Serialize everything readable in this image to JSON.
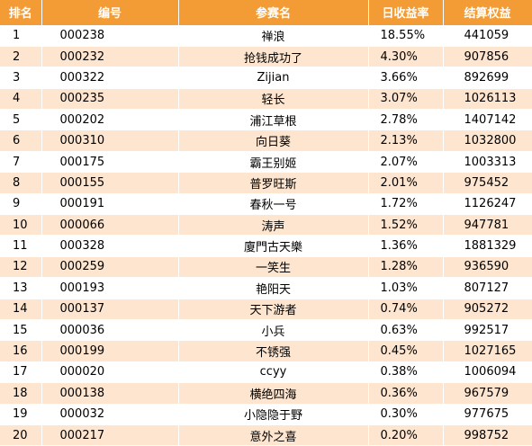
{
  "table": {
    "headers": [
      "排名",
      "编号",
      "参赛名",
      "日收益率",
      "结算权益"
    ],
    "rows": [
      [
        "1",
        "000238",
        "禅浪",
        "18.55%",
        "441059"
      ],
      [
        "2",
        "000232",
        "抢钱成功了",
        "4.30%",
        "907856"
      ],
      [
        "3",
        "000322",
        "Zijian",
        "3.66%",
        "892699"
      ],
      [
        "4",
        "000235",
        "轻长",
        "3.07%",
        "1026113"
      ],
      [
        "5",
        "000202",
        "浦江草根",
        "2.78%",
        "1407142"
      ],
      [
        "6",
        "000310",
        "向日葵",
        "2.13%",
        "1032800"
      ],
      [
        "7",
        "000175",
        "霸王别姬",
        "2.07%",
        "1003313"
      ],
      [
        "8",
        "000155",
        "普罗旺斯",
        "2.01%",
        "975452"
      ],
      [
        "9",
        "000191",
        "春秋一号",
        "1.72%",
        "1126247"
      ],
      [
        "10",
        "000066",
        "涛声",
        "1.52%",
        "947781"
      ],
      [
        "11",
        "000328",
        "廈門古天樂",
        "1.36%",
        "1881329"
      ],
      [
        "12",
        "000259",
        "一笑生",
        "1.28%",
        "936590"
      ],
      [
        "13",
        "000193",
        "艳阳天",
        "1.03%",
        "807127"
      ],
      [
        "14",
        "000137",
        "天下游者",
        "0.74%",
        "905272"
      ],
      [
        "15",
        "000036",
        "小兵",
        "0.63%",
        "992517"
      ],
      [
        "16",
        "000199",
        "不锈强",
        "0.45%",
        "1027165"
      ],
      [
        "17",
        "000020",
        "ccyy",
        "0.38%",
        "1006094"
      ],
      [
        "18",
        "000138",
        "横绝四海",
        "0.36%",
        "967579"
      ],
      [
        "19",
        "000032",
        "小隐隐于野",
        "0.30%",
        "977675"
      ],
      [
        "20",
        "000217",
        "意外之喜",
        "0.20%",
        "998752"
      ]
    ]
  },
  "colors": {
    "header_bg": "#f39c36",
    "header_text": "#ffffff",
    "alt_row_bg": "#fde5cf"
  }
}
